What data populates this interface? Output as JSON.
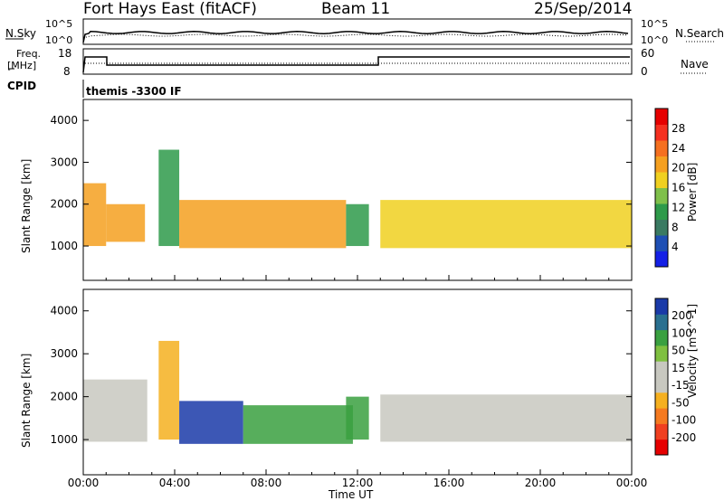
{
  "header": {
    "station": "Fort Hays East (fitACF)",
    "beam": "Beam 11",
    "date": "25/Sep/2014"
  },
  "top_panels": {
    "nsky_label": "N.Sky",
    "nsky_ticks": [
      "10^5",
      "10^0"
    ],
    "nsearch_label": "N.Search",
    "nsearch_ticks": [
      "10^5",
      "10^0"
    ],
    "freq_label": "Freq.",
    "freq_unit": "[MHz]",
    "freq_ticks": [
      "18",
      "8"
    ],
    "nave_label": "Nave",
    "nave_ticks": [
      "60",
      "0"
    ],
    "cpid_label": "CPID",
    "cpid_value": "themis -3300 IF"
  },
  "colors": {
    "power_scale": [
      "#1420e6",
      "#1e4fb4",
      "#3a7a62",
      "#2e9a4a",
      "#7fc04a",
      "#f0d020",
      "#f5a020",
      "#f57020",
      "#f53020",
      "#e60000"
    ],
    "velocity_scale": [
      "#e60000",
      "#f04020",
      "#f57a20",
      "#f5b020",
      "#c8c8c0",
      "#c8c8c0",
      "#7fc040",
      "#3aa040",
      "#2a7090",
      "#1a3aa8"
    ],
    "ground_scatter": "#c8c8c0"
  },
  "chart_data": [
    {
      "type": "heatmap",
      "name": "power",
      "ylabel": "Slant Range [km]",
      "yticks": [
        1000,
        2000,
        3000,
        4000
      ],
      "ylim": [
        180,
        4500
      ],
      "xlim": [
        0,
        24
      ],
      "colorbar_label": "Power [dB]",
      "colorbar_ticks": [
        "28",
        "24",
        "20",
        "16",
        "12",
        "8",
        "4"
      ],
      "colorbar_range": [
        0,
        32
      ],
      "bands": [
        {
          "t0": 0.0,
          "t1": 1.0,
          "r0": 1000,
          "r1": 2500,
          "value": 22
        },
        {
          "t0": 1.0,
          "t1": 2.7,
          "r0": 1100,
          "r1": 2000,
          "value": 20
        },
        {
          "t0": 3.3,
          "t1": 4.2,
          "r0": 1000,
          "r1": 3300,
          "value": 12
        },
        {
          "t0": 4.2,
          "t1": 11.5,
          "r0": 950,
          "r1": 2100,
          "value": 20
        },
        {
          "t0": 11.5,
          "t1": 12.5,
          "r0": 1000,
          "r1": 2000,
          "value": 12
        },
        {
          "t0": 13.0,
          "t1": 24.0,
          "r0": 950,
          "r1": 2100,
          "value": 18
        }
      ]
    },
    {
      "type": "heatmap",
      "name": "velocity",
      "ylabel": "Slant Range [km]",
      "yticks": [
        1000,
        2000,
        3000,
        4000
      ],
      "ylim": [
        180,
        4500
      ],
      "xlim": [
        0,
        24
      ],
      "colorbar_label": "Velocity [m s^-1]",
      "colorbar_ticks": [
        "200",
        "100",
        "50",
        "15",
        "-15",
        "-50",
        "-100",
        "-200"
      ],
      "bands": [
        {
          "t0": 0.0,
          "t1": 2.8,
          "r0": 950,
          "r1": 2400,
          "value": 0
        },
        {
          "t0": 3.3,
          "t1": 4.2,
          "r0": 1000,
          "r1": 3300,
          "value": -60
        },
        {
          "t0": 4.2,
          "t1": 7.0,
          "r0": 900,
          "r1": 1900,
          "value": 120
        },
        {
          "t0": 7.0,
          "t1": 11.8,
          "r0": 900,
          "r1": 1800,
          "value": 40
        },
        {
          "t0": 11.5,
          "t1": 12.5,
          "r0": 1000,
          "r1": 2000,
          "value": 40
        },
        {
          "t0": 13.0,
          "t1": 24.0,
          "r0": 950,
          "r1": 2050,
          "value": 0
        }
      ]
    }
  ],
  "xaxis": {
    "ticks": [
      "00:00",
      "04:00",
      "08:00",
      "12:00",
      "16:00",
      "20:00",
      "00:00"
    ],
    "label": "Time UT"
  }
}
